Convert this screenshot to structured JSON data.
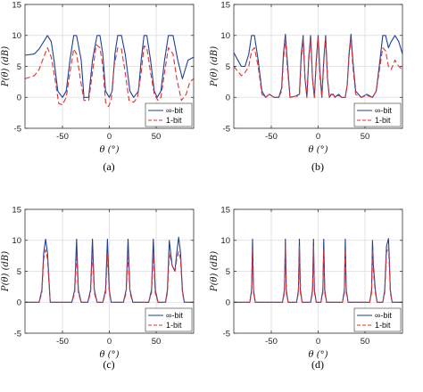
{
  "chart_data": [
    {
      "type": "line",
      "caption": "(a)",
      "xlabel": "θ (°)",
      "ylabel": "P(θ) (dB)",
      "xlim": [
        -90,
        90
      ],
      "ylim": [
        -5,
        15
      ],
      "xticks": [
        -50,
        0,
        50
      ],
      "yticks": [
        -5,
        0,
        5,
        10,
        15
      ],
      "grid": true,
      "legend": "bottom-right",
      "series": [
        {
          "name": "∞-bit",
          "color": "#1f3f99",
          "dash": "solid",
          "x": [
            -90,
            -80,
            -75,
            -70,
            -66,
            -62,
            -59,
            -55,
            -50,
            -46,
            -42,
            -38,
            -35,
            -30,
            -27,
            -22,
            -18,
            -13,
            -10,
            -7,
            -4,
            0,
            3,
            6,
            9,
            13,
            17,
            22,
            26,
            31,
            34,
            37,
            40,
            44,
            48,
            51,
            55,
            59,
            63,
            68,
            73,
            78,
            84,
            90
          ],
          "y": [
            6.8,
            7,
            7.8,
            9,
            10,
            9,
            6,
            1,
            0,
            1,
            6,
            10,
            10,
            6,
            0,
            0,
            6,
            10,
            10,
            7,
            1,
            0,
            1,
            7,
            10,
            10,
            7,
            1,
            0,
            1,
            6,
            10,
            10,
            6,
            1,
            0,
            1,
            6,
            10,
            10,
            6,
            3,
            6,
            6.5
          ]
        },
        {
          "name": "1-bit",
          "color": "#e03030",
          "dash": "6,3",
          "x": [
            -90,
            -80,
            -75,
            -70,
            -66,
            -62,
            -58,
            -54,
            -50,
            -46,
            -42,
            -38,
            -35,
            -31,
            -27,
            -22,
            -18,
            -14,
            -10,
            -7,
            -4,
            -1,
            2,
            5,
            9,
            13,
            17,
            21,
            26,
            30,
            34,
            37,
            40,
            44,
            48,
            52,
            55,
            59,
            63,
            68,
            72,
            77,
            82,
            86,
            90
          ],
          "y": [
            3,
            3.5,
            4.5,
            6.5,
            8,
            6.5,
            3,
            -1,
            -1.2,
            0,
            4,
            7.8,
            7,
            3,
            -0.5,
            -0.5,
            4,
            8.5,
            8,
            5,
            -0.8,
            -1.5,
            -0.5,
            5,
            8,
            7.8,
            4,
            -0.5,
            -0.8,
            0,
            4,
            8.3,
            8,
            4,
            0.5,
            -0.5,
            0,
            4,
            8,
            7,
            3,
            -0.5,
            0.5,
            2.5,
            3
          ]
        }
      ]
    },
    {
      "type": "line",
      "caption": "(b)",
      "xlabel": "θ (°)",
      "ylabel": "P(θ) (dB)",
      "xlim": [
        -90,
        90
      ],
      "ylim": [
        -5,
        15
      ],
      "xticks": [
        -50,
        0,
        50
      ],
      "yticks": [
        -5,
        0,
        5,
        10,
        15
      ],
      "grid": true,
      "legend": "bottom-right",
      "series": [
        {
          "name": "∞-bit",
          "color": "#1f3f99",
          "dash": "solid",
          "x": [
            -90,
            -82,
            -78,
            -74,
            -71,
            -68,
            -64,
            -60,
            -56,
            -52,
            -47,
            -42,
            -39,
            -37,
            -35,
            -33,
            -30,
            -24,
            -20,
            -18,
            -16,
            -14,
            -12,
            -10,
            -8,
            -6,
            -4,
            -2,
            0,
            2,
            4,
            6,
            8,
            10,
            12,
            14,
            16,
            18,
            20,
            22,
            25,
            29,
            31,
            33,
            35,
            37,
            40,
            46,
            52,
            58,
            62,
            66,
            69,
            72,
            75,
            78,
            82,
            86,
            90
          ],
          "y": [
            7.2,
            5,
            5,
            7,
            10,
            10,
            6,
            1,
            0,
            0.5,
            0,
            0,
            1.5,
            7,
            10.2,
            6,
            0,
            0.2,
            0.5,
            7,
            10,
            3,
            0,
            6.5,
            10,
            3,
            0,
            6,
            10,
            4,
            0,
            6,
            10,
            3,
            0,
            0.5,
            0.5,
            0,
            0.3,
            0.5,
            0,
            0,
            2,
            7,
            10.2,
            6,
            1,
            0,
            0.5,
            0,
            1,
            6,
            10,
            10,
            8,
            9,
            10,
            9,
            7
          ]
        },
        {
          "name": "1-bit",
          "color": "#e03030",
          "dash": "6,3",
          "x": [
            -90,
            -82,
            -78,
            -74,
            -71,
            -68,
            -64,
            -60,
            -56,
            -52,
            -47,
            -42,
            -39,
            -37,
            -35,
            -33,
            -30,
            -24,
            -20,
            -18,
            -16,
            -14,
            -12,
            -10,
            -8,
            -6,
            -4,
            -2,
            0,
            2,
            4,
            6,
            8,
            10,
            12,
            14,
            16,
            18,
            20,
            22,
            25,
            29,
            31,
            33,
            35,
            37,
            40,
            46,
            52,
            58,
            62,
            66,
            69,
            72,
            75,
            78,
            82,
            86,
            90
          ],
          "y": [
            5,
            3.5,
            4,
            5,
            7.5,
            8,
            5,
            0.5,
            0,
            0.5,
            0,
            0,
            1,
            6,
            9.5,
            5,
            0,
            0.2,
            0.2,
            6,
            9.5,
            3,
            0,
            6,
            9.5,
            3,
            0,
            5.5,
            9.5,
            3,
            0,
            5.5,
            9.5,
            3,
            0,
            0.3,
            0.5,
            0,
            0.2,
            0.3,
            0,
            0,
            2,
            6.5,
            9.5,
            5,
            0.5,
            0,
            0.3,
            0,
            1,
            5,
            8,
            7.5,
            5,
            4.5,
            6,
            5,
            4.5
          ]
        }
      ]
    },
    {
      "type": "line",
      "caption": "(c)",
      "xlabel": "θ (°)",
      "ylabel": "P(θ) (dB)",
      "xlim": [
        -90,
        90
      ],
      "ylim": [
        -5,
        15
      ],
      "xticks": [
        -50,
        0,
        50
      ],
      "yticks": [
        -5,
        0,
        5,
        10,
        15
      ],
      "grid": true,
      "legend": "bottom-right",
      "series": [
        {
          "name": "∞-bit",
          "color": "#1f3f99",
          "dash": "solid",
          "x": [
            -90,
            -75,
            -72,
            -70,
            -68,
            -66,
            -63,
            -40,
            -37,
            -35,
            -33,
            -30,
            -23,
            -20,
            -18,
            -16,
            -13,
            -7,
            -4,
            -2,
            0,
            2,
            5,
            15,
            18,
            20,
            22,
            25,
            35,
            42,
            45,
            47,
            49,
            52,
            55,
            60,
            62,
            64,
            67,
            70,
            72,
            74,
            76,
            78,
            80,
            83,
            90
          ],
          "y": [
            0,
            0,
            2,
            8,
            10.2,
            8,
            0,
            0,
            2,
            10.2,
            2,
            0,
            0,
            2,
            10.2,
            2,
            0,
            0,
            2,
            10.2,
            2,
            0,
            0,
            0,
            2,
            10.2,
            2,
            0,
            0,
            0,
            2,
            10.2,
            2,
            0,
            0,
            0,
            2,
            10,
            6,
            5,
            8,
            10.5,
            8,
            2,
            0,
            0,
            0
          ]
        },
        {
          "name": "1-bit",
          "color": "#e03030",
          "dash": "6,3",
          "x": [
            -90,
            -75,
            -72,
            -70,
            -68,
            -66,
            -63,
            -40,
            -37,
            -35,
            -33,
            -30,
            -23,
            -20,
            -18,
            -16,
            -13,
            -7,
            -4,
            -2,
            0,
            2,
            5,
            15,
            18,
            20,
            22,
            25,
            35,
            42,
            45,
            47,
            49,
            52,
            55,
            60,
            62,
            64,
            67,
            70,
            72,
            74,
            76,
            78,
            80,
            83,
            90
          ],
          "y": [
            0,
            0,
            1.5,
            7,
            8.5,
            7,
            0,
            0,
            1.5,
            7.8,
            1.5,
            0,
            0,
            1.5,
            8,
            1.5,
            0,
            0,
            1.5,
            7.8,
            1.5,
            0,
            0,
            0,
            1.5,
            8,
            1.5,
            0,
            0,
            0,
            1.5,
            8,
            1.5,
            0,
            0,
            0,
            1.5,
            8,
            6,
            5,
            7,
            8.2,
            7,
            1.5,
            0,
            0,
            0
          ]
        }
      ]
    },
    {
      "type": "line",
      "caption": "(d)",
      "xlabel": "θ (°)",
      "ylabel": "P(θ) (dB)",
      "xlim": [
        -90,
        90
      ],
      "ylim": [
        -5,
        15
      ],
      "xticks": [
        -50,
        0,
        50
      ],
      "yticks": [
        -5,
        0,
        5,
        10,
        15
      ],
      "grid": true,
      "legend": "bottom-right",
      "series": [
        {
          "name": "∞-bit",
          "color": "#1f3f99",
          "dash": "solid",
          "x": [
            -90,
            -73,
            -71,
            -70,
            -69,
            -67,
            -38,
            -36,
            -35,
            -34,
            -32,
            -23,
            -21,
            -20,
            -19,
            -17,
            -8,
            -6,
            -5,
            -4,
            -2,
            3,
            5,
            6,
            7,
            9,
            26,
            28,
            29,
            30,
            32,
            55,
            57,
            58,
            59,
            61,
            63,
            65,
            66,
            67,
            69,
            71,
            73,
            75,
            76,
            77,
            79,
            90
          ],
          "y": [
            0,
            0,
            2,
            10.2,
            2,
            0,
            0,
            2,
            10.2,
            2,
            0,
            0,
            2,
            10.2,
            2,
            0,
            0,
            2,
            10.2,
            2,
            0,
            0,
            2,
            10.2,
            2,
            0,
            0,
            2,
            10.2,
            2,
            0,
            0,
            2,
            10,
            6,
            2,
            0,
            0,
            0,
            0,
            0,
            2,
            9,
            10.3,
            7,
            2,
            0,
            0
          ]
        },
        {
          "name": "1-bit",
          "color": "#e03030",
          "dash": "6,3",
          "x": [
            -90,
            -73,
            -71,
            -70,
            -69,
            -67,
            -38,
            -36,
            -35,
            -34,
            -32,
            -23,
            -21,
            -20,
            -19,
            -17,
            -8,
            -6,
            -5,
            -4,
            -2,
            3,
            5,
            6,
            7,
            9,
            26,
            28,
            29,
            30,
            32,
            55,
            57,
            58,
            59,
            61,
            63,
            65,
            66,
            67,
            69,
            71,
            73,
            75,
            76,
            77,
            79,
            90
          ],
          "y": [
            0,
            0,
            1.5,
            8.5,
            1.5,
            0,
            0,
            1.5,
            9,
            1.5,
            0,
            0,
            1.5,
            9,
            1.5,
            0,
            0,
            1.5,
            9,
            1.5,
            0,
            0,
            1.5,
            8.5,
            1.5,
            0,
            0,
            1.5,
            8.5,
            1.5,
            0,
            0,
            1.5,
            8.5,
            5,
            1.5,
            0,
            0,
            0,
            0,
            0,
            1.5,
            8,
            9,
            6,
            1.5,
            0,
            0
          ]
        }
      ]
    }
  ]
}
